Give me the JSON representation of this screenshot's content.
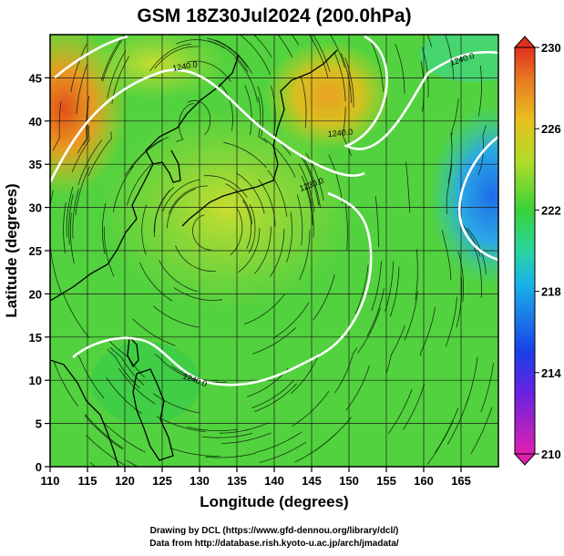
{
  "title": "GSM 18Z30Jul2024 (200.0hPa)",
  "x_axis": {
    "label": "Longitude (degrees)",
    "ticks": [
      "110",
      "115",
      "120",
      "125",
      "130",
      "135",
      "140",
      "145",
      "150",
      "155",
      "160",
      "165"
    ]
  },
  "y_axis": {
    "label": "Latitude (degrees)",
    "ticks": [
      "0",
      "5",
      "10",
      "15",
      "20",
      "25",
      "30",
      "35",
      "40",
      "45"
    ]
  },
  "colorbar": {
    "ticks": [
      "210",
      "214",
      "218",
      "222",
      "226",
      "230"
    ]
  },
  "contour_labels": [
    "1240.0",
    "1240.0",
    "1240.0",
    "1240.0",
    "1230.0"
  ],
  "credits": {
    "line1": "Drawing by DCL (https://www.gfd-dennou.org/library/dcl/)",
    "line2": "Data from http://database.rish.kyoto-u.ac.jp/arch/jmadata/"
  },
  "colors": {
    "low": "#d400a0",
    "mid_low": "#1a3cf0",
    "mid": "#30d040",
    "high": "#e03a18"
  }
}
